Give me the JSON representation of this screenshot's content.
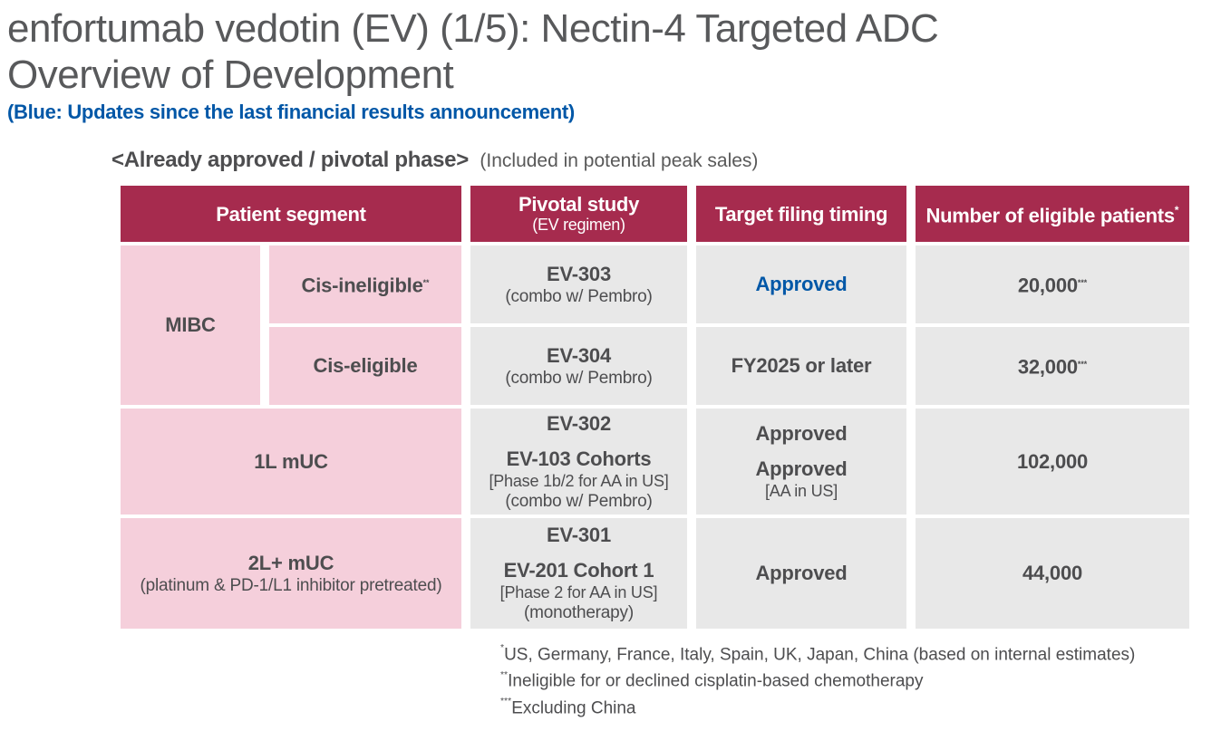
{
  "page": {
    "title_line1": "enfortumab vedotin (EV) (1/5): Nectin-4 Targeted ADC",
    "title_line2": "Overview of Development",
    "subtitle": "(Blue: Updates since the last financial results announcement)",
    "section_heading": "<Already approved / pivotal phase>",
    "section_note": "(Included in potential peak sales)"
  },
  "colors": {
    "header_bg": "#A62B4E",
    "pink_bg": "#F5CFDB",
    "gray_bg": "#E8E8E8",
    "accent_blue": "#0057A7",
    "title_gray": "#58595B",
    "text_dark": "#4D4D4F"
  },
  "table": {
    "headers": {
      "patient_segment": "Patient segment",
      "pivotal_study": "Pivotal study",
      "pivotal_study_sub": "(EV regimen)",
      "target_filing_timing": "Target filing timing",
      "eligible_patients": "Number of eligible patients",
      "eligible_patients_sup": "*"
    },
    "rows": [
      {
        "segment_group": "MIBC",
        "segment": "Cis-ineligible",
        "segment_sup": "**",
        "study": "EV-303",
        "study_sub": "(combo w/ Pembro)",
        "filing": "Approved",
        "patients": "20,000",
        "patients_sup": "***"
      },
      {
        "segment": "Cis-eligible",
        "study": "EV-304",
        "study_sub": "(combo w/ Pembro)",
        "filing": "FY2025 or later",
        "patients": "32,000",
        "patients_sup": "***"
      },
      {
        "segment": "1L mUC",
        "study_line1": "EV-302",
        "study_line2": "EV-103 Cohorts",
        "study_line3": "[Phase 1b/2 for AA in US]",
        "study_line4": "(combo w/ Pembro)",
        "filing_line1": "Approved",
        "filing_line2": "Approved",
        "filing_line3": "[AA in US]",
        "patients": "102,000"
      },
      {
        "segment": "2L+ mUC",
        "segment_sub": "(platinum & PD-1/L1 inhibitor pretreated)",
        "study_line1": "EV-301",
        "study_line2": "EV-201 Cohort 1",
        "study_line3": "[Phase 2 for AA in US]",
        "study_line4": "(monotherapy)",
        "filing": "Approved",
        "patients": "44,000"
      }
    ]
  },
  "footnotes": [
    {
      "sup": "*",
      "text": "US, Germany, France, Italy, Spain, UK, Japan, China (based on internal estimates)"
    },
    {
      "sup": "**",
      "text": "Ineligible for or declined cisplatin-based chemotherapy"
    },
    {
      "sup": "***",
      "text": "Excluding China"
    }
  ]
}
